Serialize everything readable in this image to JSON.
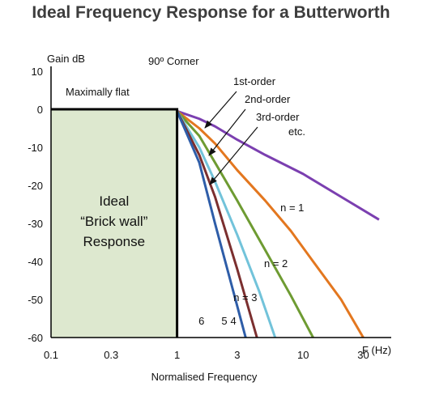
{
  "title": "Ideal Frequency Response for a Butterworth",
  "chart_data": {
    "type": "line",
    "title": "Ideal Frequency Response for a Butterworth",
    "ylabel": "Gain dB",
    "xlabel": "Normalised Frequency",
    "xunit": "F (Hz)",
    "xscale": "log",
    "xlim": [
      0.1,
      50
    ],
    "ylim": [
      -60,
      10
    ],
    "x_ticks": [
      0.1,
      0.3,
      1,
      3,
      10,
      30
    ],
    "x_tick_labels": [
      "0.1",
      "0.3",
      "1",
      "3",
      "10",
      "30"
    ],
    "y_ticks": [
      10,
      0,
      -10,
      -20,
      -30,
      -40,
      -50,
      -60
    ],
    "y_tick_labels": [
      "10",
      "0",
      "-10",
      "-20",
      "-30",
      "-40",
      "-50",
      "-60"
    ],
    "ideal_region": {
      "label_lines": [
        "Ideal",
        "“Brick wall”",
        "Response"
      ],
      "x": [
        0.1,
        1
      ],
      "gain_db": 0,
      "color": "#dde8cf"
    },
    "series": [
      {
        "name": "n = 1",
        "order": 1,
        "color": "#7b3fb0",
        "x": [
          1,
          1.5,
          2,
          3,
          5,
          10,
          20,
          40
        ],
        "y": [
          -0.5,
          -2.5,
          -4.5,
          -8,
          -12,
          -17,
          -23,
          -29
        ]
      },
      {
        "name": "n = 2",
        "order": 2,
        "color": "#e3771f",
        "x": [
          1,
          1.5,
          2,
          3,
          5,
          8,
          12,
          20,
          30
        ],
        "y": [
          -0.5,
          -5,
          -9,
          -16,
          -24,
          -32,
          -40,
          -50,
          -60
        ]
      },
      {
        "name": "n = 3",
        "order": 3,
        "color": "#6e9b32",
        "x": [
          1,
          1.5,
          2,
          3,
          5,
          8,
          12
        ],
        "y": [
          -0.5,
          -7,
          -14,
          -24,
          -37,
          -49,
          -60
        ]
      },
      {
        "name": "4",
        "order": 4,
        "color": "#72c3da",
        "x": [
          1,
          1.5,
          2,
          3,
          4.5,
          6
        ],
        "y": [
          -0.5,
          -10,
          -19,
          -33,
          -48,
          -60
        ]
      },
      {
        "name": "5",
        "order": 5,
        "color": "#7b2f2f",
        "x": [
          1,
          1.5,
          2,
          3,
          4.3
        ],
        "y": [
          -0.5,
          -12,
          -23,
          -42,
          -60
        ]
      },
      {
        "name": "6",
        "order": 6,
        "color": "#2e5da8",
        "x": [
          1,
          1.5,
          2,
          2.8,
          3.5
        ],
        "y": [
          -0.5,
          -14,
          -30,
          -48,
          -60
        ]
      }
    ],
    "annotations": {
      "corner": "90º Corner",
      "flat": "Maximally flat",
      "first_order": "1st-order",
      "second_order": "2nd-order",
      "third_order": "3rd-order",
      "etc": "etc."
    },
    "grid": false
  }
}
